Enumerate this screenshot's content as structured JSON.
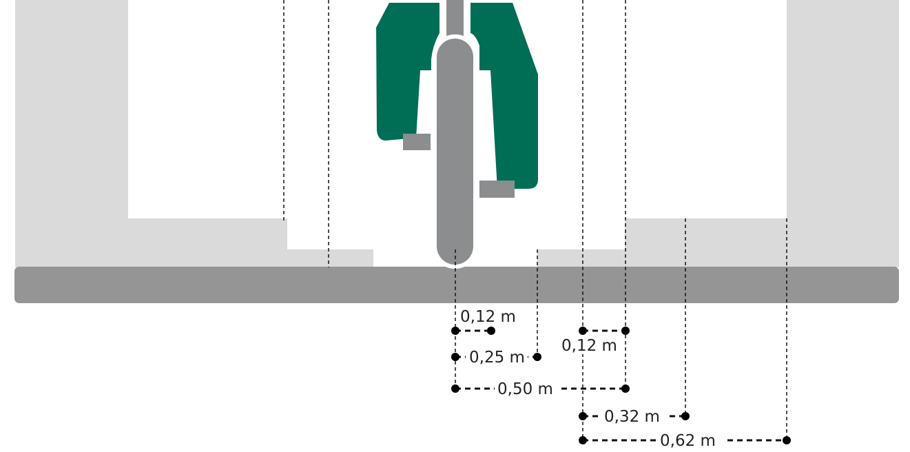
{
  "colors": {
    "background": "#ffffff",
    "pavement": "#dadada",
    "road": "#959596",
    "wheel": "#8c8d8f",
    "rider": "#006d55",
    "pedal": "#8c8d8f",
    "dimension_line": "#111111",
    "label": "#222222"
  },
  "dimensions": [
    {
      "id": "dim-0-12-left",
      "label": "0,12 m"
    },
    {
      "id": "dim-0-25",
      "label": "0,25 m"
    },
    {
      "id": "dim-0-50",
      "label": "0,50 m"
    },
    {
      "id": "dim-0-12-right",
      "label": "0,12 m"
    },
    {
      "id": "dim-0-32",
      "label": "0,32 m"
    },
    {
      "id": "dim-0-62",
      "label": "0,62 m"
    }
  ]
}
